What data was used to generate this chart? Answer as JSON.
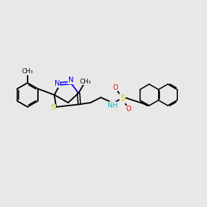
{
  "background_color": "#e8e8e8",
  "bond_color": "#000000",
  "n_color": "#0000ff",
  "s_color": "#cccc00",
  "o_color": "#ff0000",
  "nh_color": "#00bbbb",
  "figsize": [
    3.0,
    3.0
  ],
  "dpi": 100,
  "xlim": [
    0,
    12
  ],
  "ylim": [
    0,
    10
  ]
}
